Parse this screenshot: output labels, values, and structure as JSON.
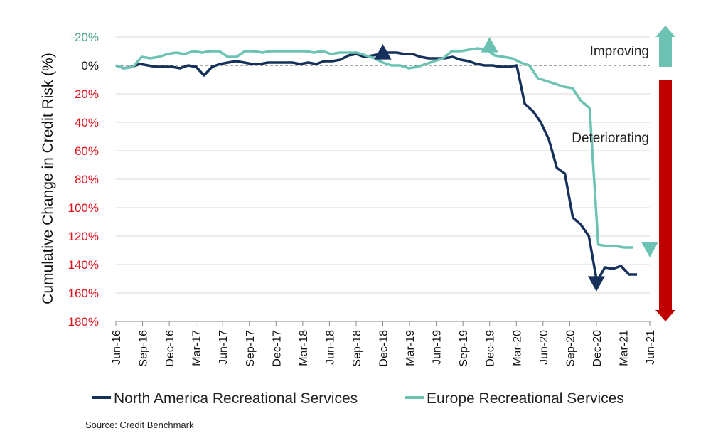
{
  "chart_data": {
    "type": "line",
    "ylabel": "Cumulative Change in Credit Risk (%)",
    "ylim": [
      -20,
      180
    ],
    "y_inverted": true,
    "y_ticks": [
      -20,
      0,
      20,
      40,
      60,
      80,
      100,
      120,
      140,
      160,
      180
    ],
    "y_tick_labels": [
      "-20%",
      "0%",
      "20%",
      "40%",
      "60%",
      "80%",
      "100%",
      "120%",
      "140%",
      "160%",
      "180%"
    ],
    "y_tick_colors": {
      "negative": "#4aa68c",
      "zero": "#111111",
      "positive": "#e0141e"
    },
    "zero_line": "dashed",
    "x_tick_labels": [
      "Jun-16",
      "Sep-16",
      "Dec-16",
      "Mar-17",
      "Jun-17",
      "Sep-17",
      "Dec-17",
      "Mar-18",
      "Jun-18",
      "Sep-18",
      "Dec-18",
      "Mar-19",
      "Jun-19",
      "Sep-19",
      "Dec-19",
      "Mar-20",
      "Jun-20",
      "Sep-20",
      "Dec-20",
      "Mar-21",
      "Jun-21"
    ],
    "grid": "horizontal",
    "legend_position": "bottom",
    "series": [
      {
        "name": "North America Recreational Services",
        "color": "#15305a",
        "values": [
          0,
          2,
          1,
          -1,
          0,
          1,
          1,
          1,
          2,
          0,
          1,
          7,
          1,
          -1,
          -2,
          -3,
          -2,
          -1,
          -1,
          -2,
          -2,
          -2,
          -2,
          -1,
          -2,
          -1,
          -3,
          -3,
          -4,
          -7,
          -8,
          -6,
          -7,
          -8,
          -9,
          -9,
          -8,
          -8,
          -6,
          -5,
          -5,
          -5,
          -6,
          -4,
          -3,
          -1,
          0,
          0,
          1,
          1,
          0,
          27,
          32,
          40,
          52,
          72,
          76,
          107,
          112,
          120,
          152,
          142,
          143,
          141,
          147,
          147
        ]
      },
      {
        "name": "Europe Recreational Services",
        "color": "#6cc3b3",
        "values": [
          0,
          2,
          1,
          -6,
          -5,
          -6,
          -8,
          -9,
          -8,
          -10,
          -9,
          -10,
          -10,
          -6,
          -6,
          -10,
          -10,
          -9,
          -10,
          -10,
          -10,
          -10,
          -10,
          -9,
          -10,
          -8,
          -9,
          -9,
          -9,
          -7,
          -5,
          -2,
          0,
          0,
          2,
          1,
          -1,
          -3,
          -5,
          -10,
          -10,
          -11,
          -12,
          -11,
          -7,
          -6,
          -5,
          -2,
          0,
          9,
          11,
          13,
          15,
          16,
          25,
          30,
          126,
          127,
          127,
          128,
          128
        ]
      }
    ],
    "markers": [
      {
        "shape": "triangle-up",
        "color": "#15305a",
        "series": "North America Recreational Services",
        "x": "Dec-18",
        "y": -9
      },
      {
        "shape": "triangle-up",
        "color": "#6cc3b3",
        "series": "Europe Recreational Services",
        "x": "Dec-19",
        "y": -14
      },
      {
        "shape": "triangle-down",
        "color": "#15305a",
        "series": "North America Recreational Services",
        "x": "Dec-20",
        "y": 153
      },
      {
        "shape": "triangle-down",
        "color": "#6cc3b3",
        "series": "Europe Recreational Services",
        "x": "Jun-21",
        "y": 129
      }
    ],
    "annotations": [
      {
        "text": "Improving",
        "arrow": "up",
        "color": "#6cc3b3"
      },
      {
        "text": "Deteriorating",
        "arrow": "down",
        "color": "#c00000"
      }
    ]
  },
  "source": "Source: Credit Benchmark"
}
